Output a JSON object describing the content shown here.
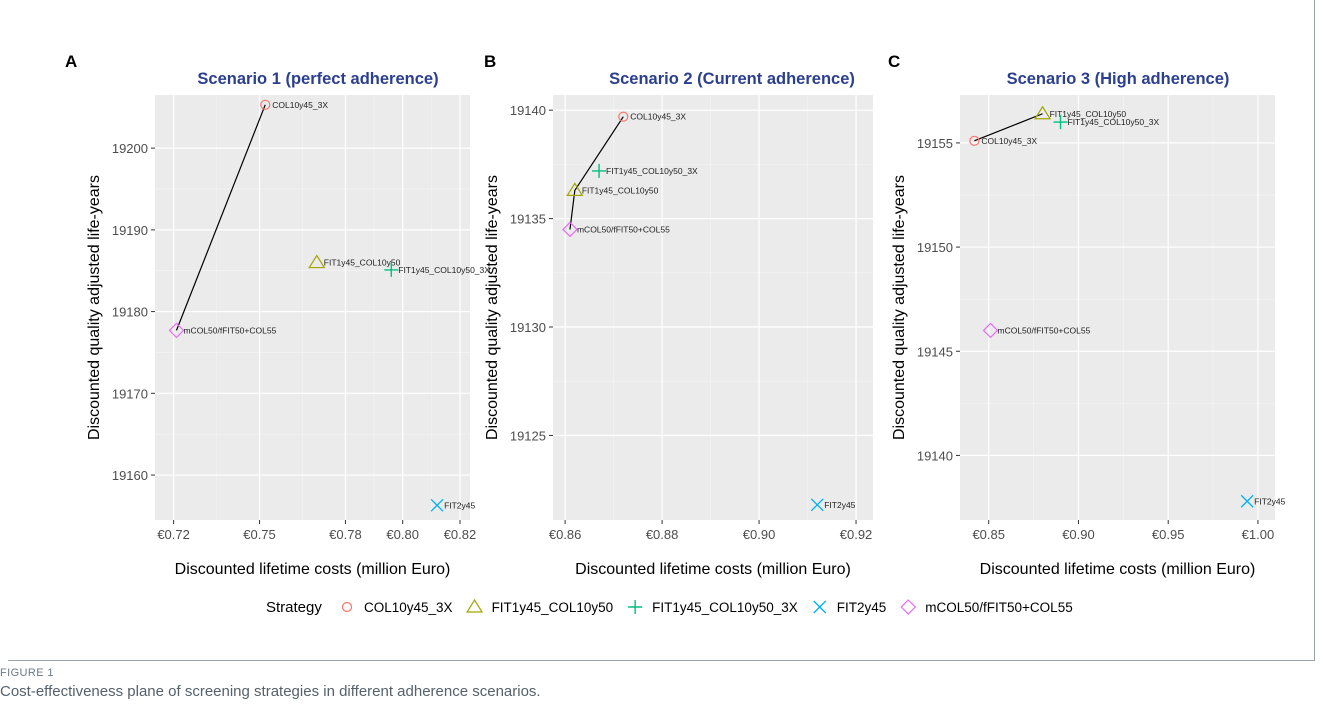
{
  "figure": {
    "caption_label": "FIGURE 1",
    "caption_text": "Cost-effectiveness plane of screening strategies in different adherence scenarios."
  },
  "legend": {
    "title": "Strategy",
    "position": "bottom",
    "items": [
      {
        "name": "COL10y45_3X",
        "color": "#F8766D",
        "shape": "circle"
      },
      {
        "name": "FIT1y45_COL10y50",
        "color": "#A3A500",
        "shape": "triangle"
      },
      {
        "name": "FIT1y45_COL10y50_3X",
        "color": "#00BF7D",
        "shape": "plus"
      },
      {
        "name": "FIT2y45",
        "color": "#00B0F6",
        "shape": "cross"
      },
      {
        "name": "mCOL50/fFIT50+COL55",
        "color": "#E76BF3",
        "shape": "diamond"
      }
    ]
  },
  "chart_data": [
    {
      "type": "scatter",
      "panel_label": "A",
      "title": "Scenario 1 (perfect adherence)",
      "xlabel": "Discounted lifetime costs (million Euro)",
      "ylabel": "Discounted quality adjusted life-years",
      "xlim": [
        0.7135,
        0.8235
      ],
      "ylim": [
        19154.5,
        19206.5
      ],
      "xticks": [
        0.72,
        0.75,
        0.78,
        0.8,
        0.82
      ],
      "xtick_labels": [
        "€0.72",
        "€0.75",
        "€0.78",
        "€0.80",
        "€0.82"
      ],
      "yticks": [
        19160,
        19170,
        19180,
        19190,
        19200
      ],
      "ytick_labels": [
        "19160",
        "19170",
        "19180",
        "19190",
        "19200"
      ],
      "grid": true,
      "points": [
        {
          "strategy": "COL10y45_3X",
          "label": "COL10y45_3X",
          "x": 0.752,
          "y": 19205.3
        },
        {
          "strategy": "FIT1y45_COL10y50",
          "label": "FIT1y45_COL10y50",
          "x": 0.77,
          "y": 19186.0
        },
        {
          "strategy": "FIT1y45_COL10y50_3X",
          "label": "FIT1y45_COL10y50_3X",
          "x": 0.796,
          "y": 19185.1
        },
        {
          "strategy": "FIT2y45",
          "label": "FIT2y45",
          "x": 0.812,
          "y": 19156.3
        },
        {
          "strategy": "mCOL50/fFIT50+COL55",
          "label": "mCOL50/fFIT50+COL55",
          "x": 0.721,
          "y": 19177.7
        }
      ],
      "frontier": [
        "mCOL50/fFIT50+COL55",
        "COL10y45_3X"
      ]
    },
    {
      "type": "scatter",
      "panel_label": "B",
      "title": "Scenario 2 (Current adherence)",
      "xlabel": "Discounted lifetime costs (million Euro)",
      "ylabel": "Discounted quality adjusted life-years",
      "xlim": [
        0.8575,
        0.9235
      ],
      "ylim": [
        19121.1,
        19140.7
      ],
      "xticks": [
        0.86,
        0.88,
        0.9,
        0.92
      ],
      "xtick_labels": [
        "€0.86",
        "€0.88",
        "€0.90",
        "€0.92"
      ],
      "yticks": [
        19125,
        19130,
        19135,
        19140
      ],
      "ytick_labels": [
        "19125",
        "19130",
        "19135",
        "19140"
      ],
      "grid": true,
      "points": [
        {
          "strategy": "COL10y45_3X",
          "label": "COL10y45_3X",
          "x": 0.872,
          "y": 19139.7
        },
        {
          "strategy": "FIT1y45_COL10y50",
          "label": "FIT1y45_COL10y50",
          "x": 0.862,
          "y": 19136.3
        },
        {
          "strategy": "FIT1y45_COL10y50_3X",
          "label": "FIT1y45_COL10y50_3X",
          "x": 0.867,
          "y": 19137.2
        },
        {
          "strategy": "FIT2y45",
          "label": "FIT2y45",
          "x": 0.912,
          "y": 19121.8
        },
        {
          "strategy": "mCOL50/fFIT50+COL55",
          "label": "mCOL50/fFIT50+COL55",
          "x": 0.861,
          "y": 19134.5
        }
      ],
      "frontier": [
        "mCOL50/fFIT50+COL55",
        "FIT1y45_COL10y50",
        "COL10y45_3X"
      ]
    },
    {
      "type": "scatter",
      "panel_label": "C",
      "title": "Scenario 3 (High adherence)",
      "xlabel": "Discounted lifetime costs (million Euro)",
      "ylabel": "Discounted quality adjusted life-years",
      "xlim": [
        0.834,
        1.0095
      ],
      "ylim": [
        19136.9,
        19157.3
      ],
      "xticks": [
        0.85,
        0.9,
        0.95,
        1.0
      ],
      "xtick_labels": [
        "€0.85",
        "€0.90",
        "€0.95",
        "€1.00"
      ],
      "yticks": [
        19140,
        19145,
        19150,
        19155
      ],
      "ytick_labels": [
        "19140",
        "19145",
        "19150",
        "19155"
      ],
      "grid": true,
      "points": [
        {
          "strategy": "COL10y45_3X",
          "label": "COL10y45_3X",
          "x": 0.842,
          "y": 19155.1
        },
        {
          "strategy": "FIT1y45_COL10y50",
          "label": "FIT1y45_COL10y50",
          "x": 0.88,
          "y": 19156.4
        },
        {
          "strategy": "FIT1y45_COL10y50_3X",
          "label": "FIT1y45_COL10y50_3X",
          "x": 0.89,
          "y": 19156.0
        },
        {
          "strategy": "FIT2y45",
          "label": "FIT2y45",
          "x": 0.994,
          "y": 19137.8
        },
        {
          "strategy": "mCOL50/fFIT50+COL55",
          "label": "mCOL50/fFIT50+COL55",
          "x": 0.851,
          "y": 19146.0
        }
      ],
      "frontier": [
        "COL10y45_3X",
        "FIT1y45_COL10y50"
      ]
    }
  ]
}
